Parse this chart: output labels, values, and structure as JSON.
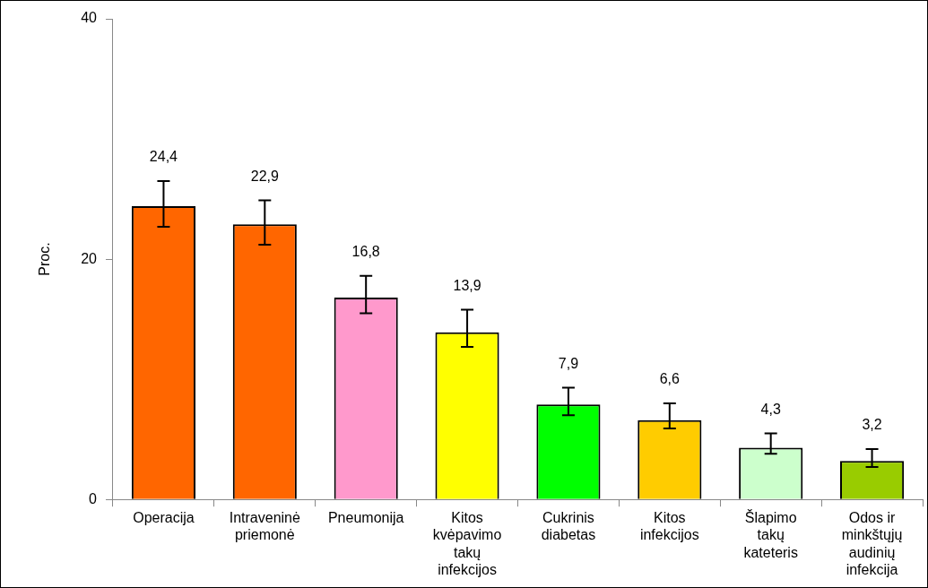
{
  "chart_data": {
    "type": "bar",
    "ylabel": "Proc.",
    "categories": [
      "Operacija",
      "Intraveninė priemonė",
      "Pneumonija",
      "Kitos kvėpavimo takų infekcijos",
      "Cukrinis diabetas",
      "Kitos infekcijos",
      "Šlapimo takų kateteris",
      "Odos ir minkštųjų audinių infekcija"
    ],
    "values": [
      24.4,
      22.9,
      16.8,
      13.9,
      7.9,
      6.6,
      4.3,
      3.2
    ],
    "value_labels": [
      "24,4",
      "22,9",
      "16,8",
      "13,9",
      "7,9",
      "6,6",
      "4,3",
      "3,2"
    ],
    "colors": [
      "#ff6600",
      "#ff6600",
      "#ff99cc",
      "#ffff00",
      "#00ff00",
      "#ffcc00",
      "#ccffcc",
      "#99cc00"
    ],
    "errors": [
      [
        22.7,
        26.5
      ],
      [
        21.2,
        24.9
      ],
      [
        15.5,
        18.6
      ],
      [
        12.7,
        15.8
      ],
      [
        7.0,
        9.3
      ],
      [
        5.9,
        8.0
      ],
      [
        3.8,
        5.5
      ],
      [
        2.7,
        4.2
      ]
    ],
    "ylim": [
      0,
      40
    ],
    "yticks": [
      0,
      20,
      40
    ],
    "grid": false,
    "legend": false
  }
}
